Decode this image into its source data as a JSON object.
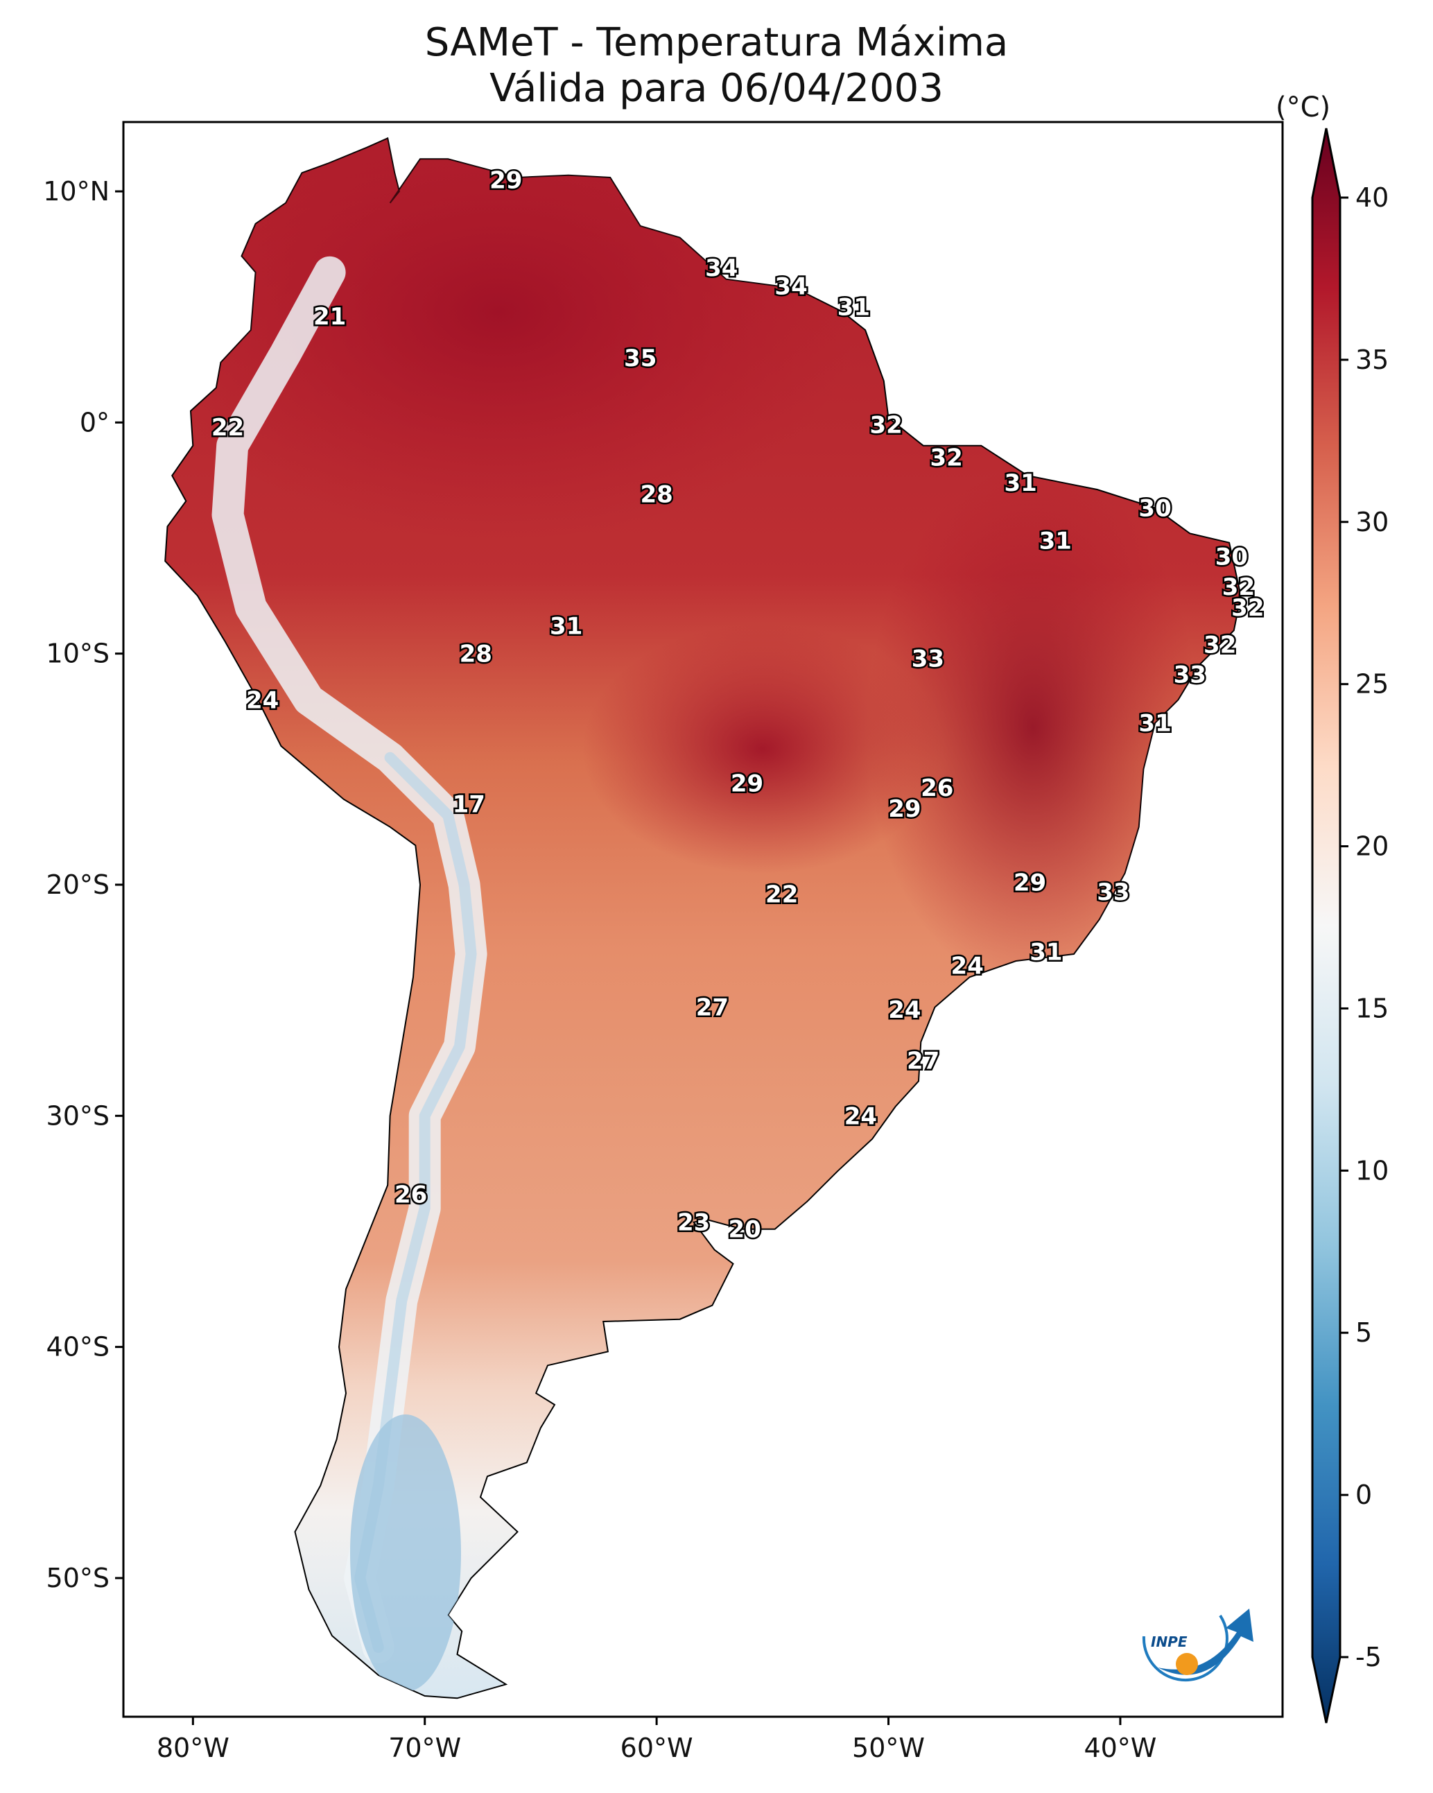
{
  "title": {
    "line1": "SAMeT - Temperatura Máxima",
    "line2": "Válida para 06/04/2003"
  },
  "axes": {
    "lon_ticks": [
      {
        "lon": -80,
        "label": "80°W"
      },
      {
        "lon": -70,
        "label": "70°W"
      },
      {
        "lon": -60,
        "label": "60°W"
      },
      {
        "lon": -50,
        "label": "50°W"
      },
      {
        "lon": -40,
        "label": "40°W"
      }
    ],
    "lat_ticks": [
      {
        "lat": 10,
        "label": "10°N"
      },
      {
        "lat": 0,
        "label": "0°"
      },
      {
        "lat": -10,
        "label": "10°S"
      },
      {
        "lat": -20,
        "label": "20°S"
      },
      {
        "lat": -30,
        "label": "30°S"
      },
      {
        "lat": -40,
        "label": "40°S"
      },
      {
        "lat": -50,
        "label": "50°S"
      }
    ],
    "lon_range": [
      -83,
      -33
    ],
    "lat_range": [
      -56,
      13
    ]
  },
  "colorbar": {
    "unit": "(°C)",
    "ticks": [
      "40",
      "35",
      "30",
      "25",
      "20",
      "15",
      "10",
      "5",
      "0",
      "-5"
    ],
    "tick_values": [
      40,
      35,
      30,
      25,
      20,
      15,
      10,
      5,
      0,
      -5
    ],
    "range": [
      -5,
      40
    ],
    "colors": [
      "#053061",
      "#2166ac",
      "#4393c3",
      "#92c5de",
      "#d1e5f0",
      "#f7f7f7",
      "#fddbc7",
      "#f4a582",
      "#d6604d",
      "#b2182b",
      "#67001f"
    ]
  },
  "cities": [
    {
      "label": "29",
      "lon": -66.5,
      "lat": 10.5,
      "temp": 29
    },
    {
      "label": "34",
      "lon": -57.2,
      "lat": 6.7,
      "temp": 34
    },
    {
      "label": "34",
      "lon": -54.2,
      "lat": 5.9,
      "temp": 34
    },
    {
      "label": "31",
      "lon": -51.5,
      "lat": 5.0,
      "temp": 31
    },
    {
      "label": "21",
      "lon": -74.1,
      "lat": 4.6,
      "temp": 21
    },
    {
      "label": "35",
      "lon": -60.7,
      "lat": 2.8,
      "temp": 35
    },
    {
      "label": "22",
      "lon": -78.5,
      "lat": -0.2,
      "temp": 22
    },
    {
      "label": "32",
      "lon": -50.1,
      "lat": -0.1,
      "temp": 32
    },
    {
      "label": "32",
      "lon": -47.5,
      "lat": -1.5,
      "temp": 32
    },
    {
      "label": "28",
      "lon": -60.0,
      "lat": -3.1,
      "temp": 28
    },
    {
      "label": "31",
      "lon": -44.3,
      "lat": -2.6,
      "temp": 31
    },
    {
      "label": "30",
      "lon": -38.5,
      "lat": -3.7,
      "temp": 30
    },
    {
      "label": "31",
      "lon": -42.8,
      "lat": -5.1,
      "temp": 31
    },
    {
      "label": "30",
      "lon": -35.2,
      "lat": -5.8,
      "temp": 30
    },
    {
      "label": "32",
      "lon": -34.9,
      "lat": -7.1,
      "temp": 32
    },
    {
      "label": "32",
      "lon": -34.5,
      "lat": -8.0,
      "temp": 32
    },
    {
      "label": "31",
      "lon": -63.9,
      "lat": -8.8,
      "temp": 31
    },
    {
      "label": "32",
      "lon": -35.7,
      "lat": -9.6,
      "temp": 32
    },
    {
      "label": "28",
      "lon": -67.8,
      "lat": -10.0,
      "temp": 28
    },
    {
      "label": "33",
      "lon": -48.3,
      "lat": -10.2,
      "temp": 33
    },
    {
      "label": "33",
      "lon": -37.0,
      "lat": -10.9,
      "temp": 33
    },
    {
      "label": "24",
      "lon": -77.0,
      "lat": -12.0,
      "temp": 24
    },
    {
      "label": "31",
      "lon": -38.5,
      "lat": -13.0,
      "temp": 31
    },
    {
      "label": "29",
      "lon": -56.1,
      "lat": -15.6,
      "temp": 29
    },
    {
      "label": "26",
      "lon": -47.9,
      "lat": -15.8,
      "temp": 26
    },
    {
      "label": "29",
      "lon": -49.3,
      "lat": -16.7,
      "temp": 29
    },
    {
      "label": "17",
      "lon": -68.1,
      "lat": -16.5,
      "temp": 17
    },
    {
      "label": "22",
      "lon": -54.6,
      "lat": -20.4,
      "temp": 22
    },
    {
      "label": "29",
      "lon": -43.9,
      "lat": -19.9,
      "temp": 29
    },
    {
      "label": "33",
      "lon": -40.3,
      "lat": -20.3,
      "temp": 33
    },
    {
      "label": "31",
      "lon": -43.2,
      "lat": -22.9,
      "temp": 31
    },
    {
      "label": "24",
      "lon": -46.6,
      "lat": -23.5,
      "temp": 24
    },
    {
      "label": "27",
      "lon": -57.6,
      "lat": -25.3,
      "temp": 27
    },
    {
      "label": "24",
      "lon": -49.3,
      "lat": -25.4,
      "temp": 24
    },
    {
      "label": "27",
      "lon": -48.5,
      "lat": -27.6,
      "temp": 27
    },
    {
      "label": "24",
      "lon": -51.2,
      "lat": -30.0,
      "temp": 24
    },
    {
      "label": "26",
      "lon": -70.6,
      "lat": -33.4,
      "temp": 26
    },
    {
      "label": "23",
      "lon": -58.4,
      "lat": -34.6,
      "temp": 23
    },
    {
      "label": "20",
      "lon": -56.2,
      "lat": -34.9,
      "temp": 20
    }
  ],
  "logo": {
    "text": "INPE"
  }
}
